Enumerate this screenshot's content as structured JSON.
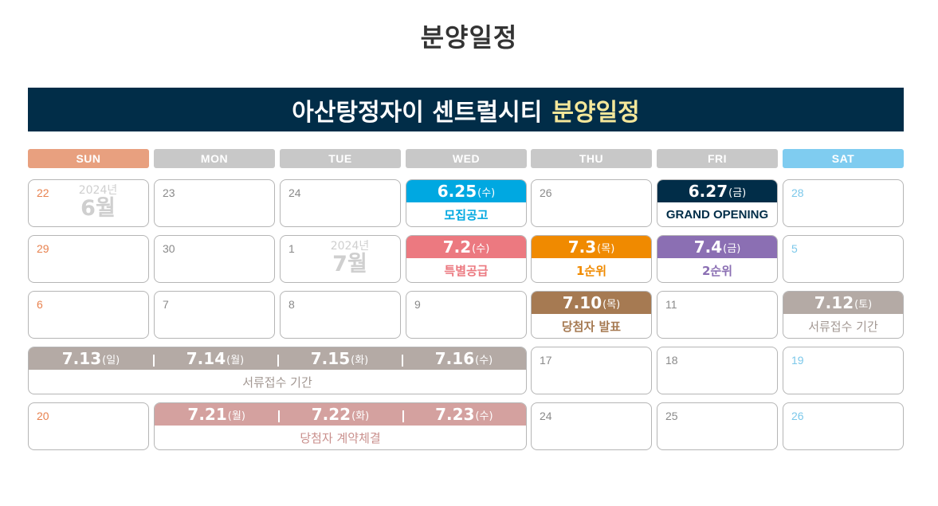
{
  "page_title": "분양일정",
  "banner": {
    "title": "아산탕정자이 센트럴시티",
    "highlight": "분양일정"
  },
  "colors": {
    "banner_bg": "#012d48",
    "banner_highlight": "#f5e79a",
    "sun": "#e8a07f",
    "weekday": "#c8c8c8",
    "sat": "#7fccf0",
    "recruit": "#00a8e1",
    "grand": "#012d48",
    "special": "#ec7980",
    "first": "#f08a00",
    "second": "#8b6fb3",
    "winners": "#a67a52",
    "docs": "#b4aaa5",
    "contract": "#d4a19f"
  },
  "weekdays": [
    "SUN",
    "MON",
    "TUE",
    "WED",
    "THU",
    "FRI",
    "SAT"
  ],
  "cells": {
    "r1c0": {
      "num": "22",
      "year": "2024년",
      "month": "6월"
    },
    "r1c1": {
      "num": "23"
    },
    "r1c2": {
      "num": "24"
    },
    "r1c3": {
      "date": "6.25",
      "weekday": "(수)",
      "label": "모집공고"
    },
    "r1c4": {
      "num": "26"
    },
    "r1c5": {
      "date": "6.27",
      "weekday": "(금)",
      "label": "GRAND OPENING"
    },
    "r1c6": {
      "num": "28"
    },
    "r2c0": {
      "num": "29"
    },
    "r2c1": {
      "num": "30"
    },
    "r2c2": {
      "num": "1",
      "year": "2024년",
      "month": "7월"
    },
    "r2c3": {
      "date": "7.2",
      "weekday": "(수)",
      "label": "특별공급"
    },
    "r2c4": {
      "date": "7.3",
      "weekday": "(목)",
      "label": "1순위"
    },
    "r2c5": {
      "date": "7.4",
      "weekday": "(금)",
      "label": "2순위"
    },
    "r2c6": {
      "num": "5"
    },
    "r3c0": {
      "num": "6"
    },
    "r3c1": {
      "num": "7"
    },
    "r3c2": {
      "num": "8"
    },
    "r3c3": {
      "num": "9"
    },
    "r3c4": {
      "date": "7.10",
      "weekday": "(목)",
      "label": "당첨자 발표"
    },
    "r3c5": {
      "num": "11"
    },
    "r3c6": {
      "date": "7.12",
      "weekday": "(토)",
      "label": "서류접수 기간"
    },
    "r4span": {
      "dates": [
        {
          "date": "7.13",
          "weekday": "(일)"
        },
        {
          "date": "7.14",
          "weekday": "(월)"
        },
        {
          "date": "7.15",
          "weekday": "(화)"
        },
        {
          "date": "7.16",
          "weekday": "(수)"
        }
      ],
      "label": "서류접수 기간"
    },
    "r4c4": {
      "num": "17"
    },
    "r4c5": {
      "num": "18"
    },
    "r4c6": {
      "num": "19"
    },
    "r5c0": {
      "num": "20"
    },
    "r5span": {
      "dates": [
        {
          "date": "7.21",
          "weekday": "(월)"
        },
        {
          "date": "7.22",
          "weekday": "(화)"
        },
        {
          "date": "7.23",
          "weekday": "(수)"
        }
      ],
      "label": "당첨자 계약체결"
    },
    "r5c4": {
      "num": "24"
    },
    "r5c5": {
      "num": "25"
    },
    "r5c6": {
      "num": "26"
    }
  }
}
